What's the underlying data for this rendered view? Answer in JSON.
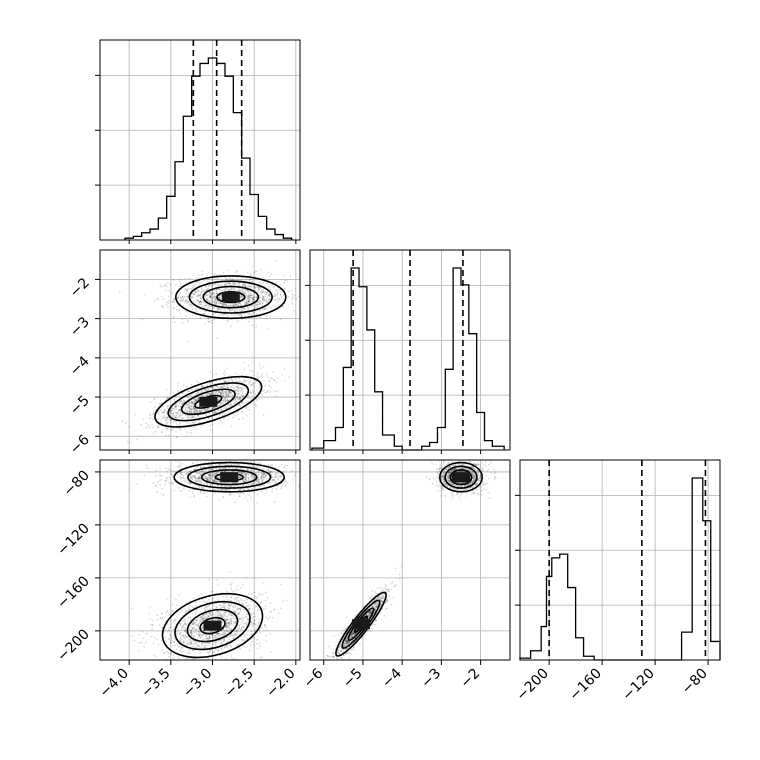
{
  "chart_data": {
    "type": "corner",
    "parameters": [
      {
        "index": 0,
        "range": [
          -4.35,
          -1.95
        ],
        "ticks": [
          -4.0,
          -3.5,
          -3.0,
          -2.5,
          -2.0
        ],
        "tick_labels": [
          "−4.0",
          "−3.5",
          "−3.0",
          "−2.5",
          "−2.0"
        ],
        "quantiles": [
          -3.23,
          -2.95,
          -2.65
        ],
        "histogram": {
          "edges": [
            -4.05,
            -3.95,
            -3.85,
            -3.75,
            -3.65,
            -3.55,
            -3.45,
            -3.35,
            -3.25,
            -3.15,
            -3.05,
            -2.95,
            -2.85,
            -2.75,
            -2.65,
            -2.55,
            -2.45,
            -2.35,
            -2.25,
            -2.15,
            -2.05
          ],
          "counts": [
            0.01,
            0.02,
            0.04,
            0.06,
            0.12,
            0.24,
            0.43,
            0.68,
            0.9,
            0.97,
            1.0,
            0.97,
            0.9,
            0.7,
            0.45,
            0.25,
            0.13,
            0.06,
            0.03,
            0.01
          ]
        }
      },
      {
        "index": 1,
        "range": [
          -6.35,
          -1.25
        ],
        "ticks": [
          -6,
          -5,
          -4,
          -3,
          -2
        ],
        "tick_labels": [
          "−6",
          "−5",
          "−4",
          "−3",
          "−2"
        ],
        "quantiles": [
          -5.25,
          -3.8,
          -2.45
        ],
        "histogram": {
          "edges": [
            -6.3,
            -6.0,
            -5.7,
            -5.5,
            -5.3,
            -5.1,
            -4.9,
            -4.7,
            -4.5,
            -4.2,
            -4.0,
            -3.8,
            -3.5,
            -3.3,
            -3.1,
            -2.9,
            -2.7,
            -2.5,
            -2.3,
            -2.1,
            -1.9,
            -1.7,
            -1.4
          ],
          "counts": [
            0.01,
            0.05,
            0.12,
            0.44,
            0.97,
            0.87,
            0.64,
            0.31,
            0.08,
            0.02,
            0.0,
            0.0,
            0.02,
            0.04,
            0.12,
            0.43,
            0.97,
            0.88,
            0.62,
            0.2,
            0.05,
            0.02
          ]
        }
      },
      {
        "index": 2,
        "range": [
          -222,
          -71
        ],
        "ticks": [
          -200,
          -160,
          -120,
          -80
        ],
        "tick_labels": [
          "−200",
          "−160",
          "−120",
          "−80"
        ],
        "quantiles": [
          -200,
          -130,
          -82
        ],
        "histogram": {
          "edges": [
            -222,
            -214,
            -206,
            -202,
            -198,
            -192,
            -186,
            -180,
            -174,
            -166,
            -150,
            -124,
            -100,
            -92,
            -84,
            -78,
            -71
          ],
          "counts": [
            0.01,
            0.05,
            0.18,
            0.45,
            0.55,
            0.57,
            0.39,
            0.12,
            0.02,
            0.0,
            0.0,
            0.0,
            0.15,
            0.98,
            0.75,
            0.1
          ]
        }
      }
    ],
    "pairs": [
      {
        "x_param": 0,
        "y_param": 1,
        "clusters": [
          {
            "center": [
              -2.78,
              -2.45
            ],
            "spread": [
              0.33,
              0.27
            ],
            "corr": 0.0,
            "weight": 0.5
          },
          {
            "center": [
              -3.05,
              -5.12
            ],
            "spread": [
              0.32,
              0.32
            ],
            "corr": 0.6,
            "weight": 0.5
          }
        ]
      },
      {
        "x_param": 0,
        "y_param": 2,
        "clusters": [
          {
            "center": [
              -2.8,
              -84
            ],
            "spread": [
              0.33,
              5.5
            ],
            "corr": 0.0,
            "weight": 0.5
          },
          {
            "center": [
              -3.0,
              -196
            ],
            "spread": [
              0.3,
              12
            ],
            "corr": 0.3,
            "weight": 0.5
          }
        ]
      },
      {
        "x_param": 1,
        "y_param": 2,
        "clusters": [
          {
            "center": [
              -2.5,
              -84
            ],
            "spread": [
              0.27,
              5.5
            ],
            "corr": 0.0,
            "weight": 0.5
          },
          {
            "center": [
              -5.05,
              -195
            ],
            "spread": [
              0.32,
              12
            ],
            "corr": 0.92,
            "weight": 0.5
          }
        ]
      }
    ],
    "contour_levels_sigma": [
      0.5,
      1.0,
      1.5,
      2.0
    ],
    "grid": true
  }
}
